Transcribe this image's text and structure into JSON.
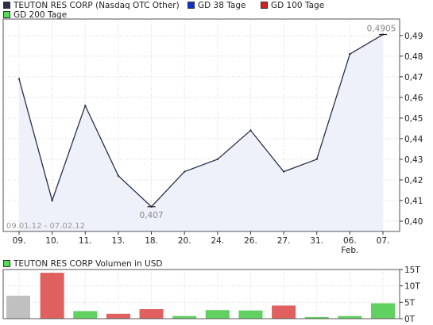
{
  "legend": {
    "main_label": "TEUTON RES CORP (Nasdaq OTC Other)",
    "main_color": "#2b2f4a",
    "gd38_label": "GD 38 Tage",
    "gd38_color": "#1030d0",
    "gd100_label": "GD 100 Tage",
    "gd100_color": "#d02020",
    "gd200_label": "GD 200 Tage",
    "gd200_color": "#50e050"
  },
  "volume_legend": {
    "label": "TEUTON RES CORP Volumen in USD",
    "color": "#50e050"
  },
  "chart_data": [
    {
      "type": "area",
      "categories": [
        "09.",
        "10.",
        "11.",
        "13.",
        "18.",
        "20.",
        "24.",
        "26.",
        "27.",
        "31.",
        "06.",
        "07."
      ],
      "month_label": "Feb.",
      "month_label_under": "06.",
      "series": [
        {
          "values": [
            0.469,
            0.41,
            0.456,
            0.422,
            0.407,
            0.424,
            0.43,
            0.444,
            0.424,
            0.43,
            0.481,
            0.4905
          ]
        }
      ],
      "yticks": [
        "0,40",
        "0,41",
        "0,42",
        "0,43",
        "0,44",
        "0,45",
        "0,46",
        "0,47",
        "0,48",
        "0,49"
      ],
      "ylim": [
        0.395,
        0.498
      ],
      "annotations": {
        "max": "0,4905",
        "min": "0,407"
      },
      "date_range": "09.01.12 - 07.02.12",
      "grid": true,
      "line_color": "#2b2f4a",
      "fill_color": "#eef0fa"
    },
    {
      "type": "bar",
      "categories": [
        "09.",
        "10.",
        "11.",
        "13.",
        "18.",
        "20.",
        "24.",
        "26.",
        "27.",
        "31.",
        "06.",
        "07."
      ],
      "values": [
        7000,
        14000,
        2300,
        1500,
        2900,
        800,
        2600,
        2500,
        4000,
        500,
        800,
        4700
      ],
      "bar_colors": [
        "#c0c0c0",
        "#e06060",
        "#60d060",
        "#e06060",
        "#e06060",
        "#60d060",
        "#60d060",
        "#60d060",
        "#e06060",
        "#60d060",
        "#60d060",
        "#60d060"
      ],
      "yticks": [
        "0T",
        "5T",
        "10T",
        "15T"
      ],
      "ylim": [
        0,
        15000
      ],
      "grid": true
    }
  ]
}
